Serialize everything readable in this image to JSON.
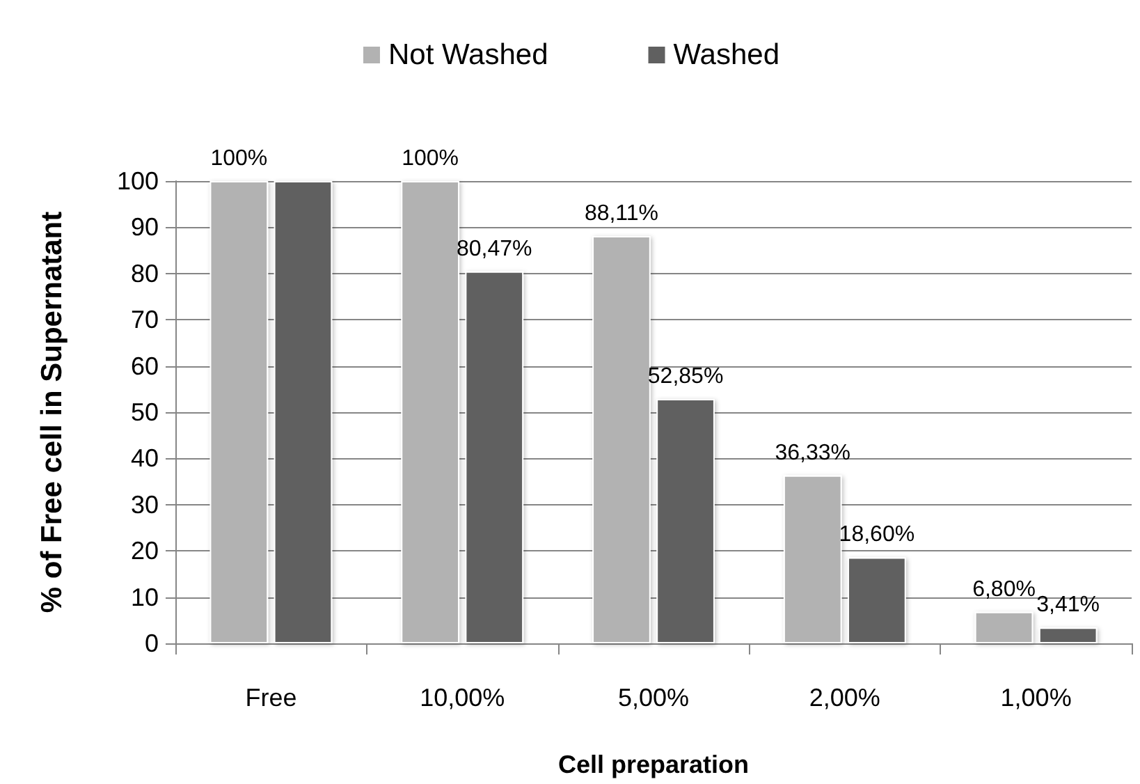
{
  "chart_data": {
    "type": "bar",
    "xlabel": "Cell preparation",
    "ylabel": "% of Free cell in Supernatant",
    "categories": [
      "Free",
      "10,00%",
      "5,00%",
      "2,00%",
      "1,00%"
    ],
    "series": [
      {
        "name": "Not Washed",
        "color": "#b2b2b2",
        "values": [
          100,
          100,
          88.11,
          36.33,
          6.8
        ],
        "value_labels": [
          "100%",
          "100%",
          "88,11%",
          "36,33%",
          "6,80%"
        ]
      },
      {
        "name": "Washed",
        "color": "#606060",
        "values": [
          100,
          80.47,
          52.85,
          18.6,
          3.41
        ],
        "value_labels": [
          null,
          "80,47%",
          "52,85%",
          "18,60%",
          "3,41%"
        ]
      }
    ],
    "ylim": [
      0,
      100
    ],
    "yticks": [
      0,
      10,
      20,
      30,
      40,
      50,
      60,
      70,
      80,
      90,
      100
    ],
    "grid": "y",
    "legend": "top"
  }
}
